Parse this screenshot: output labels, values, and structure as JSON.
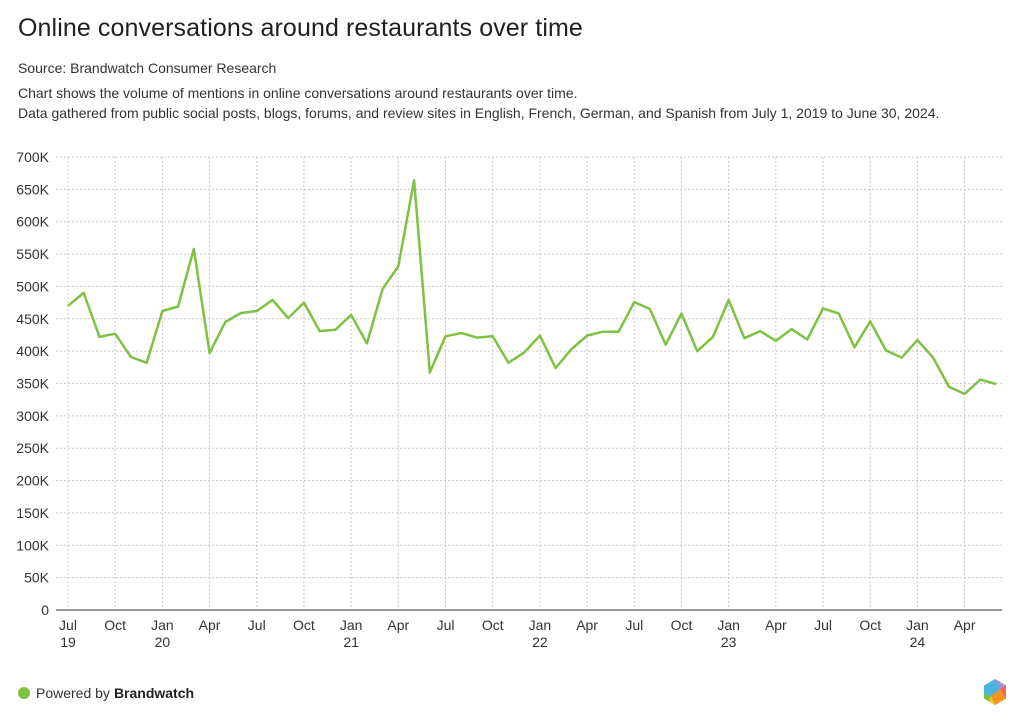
{
  "header": {
    "title": "Online conversations around restaurants over time",
    "source": "Source: Brandwatch Consumer Research",
    "description_lines": [
      "Chart shows the volume of mentions in online conversations around restaurants over time.",
      "Data gathered from public social posts, blogs, forums, and review sites in English, French, German, and Spanish from July 1, 2019 to June 30, 2024."
    ]
  },
  "footer": {
    "powered_by": "Powered by",
    "brand": "Brandwatch",
    "logo_icon": "brandwatch-hexagon-logo-icon"
  },
  "colors": {
    "line": "#7dc243",
    "grid": "#c8c8c8",
    "axis": "#999999",
    "text": "#333333"
  },
  "chart_data": {
    "type": "line",
    "title": "Online conversations around restaurants over time",
    "xlabel": "",
    "ylabel": "",
    "ylim": [
      0,
      700000
    ],
    "yticks": [
      0,
      50000,
      100000,
      150000,
      200000,
      250000,
      300000,
      350000,
      400000,
      450000,
      500000,
      550000,
      600000,
      650000,
      700000
    ],
    "ytick_labels": [
      "0",
      "50K",
      "100K",
      "150K",
      "200K",
      "250K",
      "300K",
      "350K",
      "400K",
      "450K",
      "500K",
      "550K",
      "600K",
      "650K",
      "700K"
    ],
    "xticks": [
      {
        "index": 0,
        "label": "Jul",
        "year": "19"
      },
      {
        "index": 3,
        "label": "Oct",
        "year": ""
      },
      {
        "index": 6,
        "label": "Jan",
        "year": "20"
      },
      {
        "index": 9,
        "label": "Apr",
        "year": ""
      },
      {
        "index": 12,
        "label": "Jul",
        "year": ""
      },
      {
        "index": 15,
        "label": "Oct",
        "year": ""
      },
      {
        "index": 18,
        "label": "Jan",
        "year": "21"
      },
      {
        "index": 21,
        "label": "Apr",
        "year": ""
      },
      {
        "index": 24,
        "label": "Jul",
        "year": ""
      },
      {
        "index": 27,
        "label": "Oct",
        "year": ""
      },
      {
        "index": 30,
        "label": "Jan",
        "year": "22"
      },
      {
        "index": 33,
        "label": "Apr",
        "year": ""
      },
      {
        "index": 36,
        "label": "Jul",
        "year": ""
      },
      {
        "index": 39,
        "label": "Oct",
        "year": ""
      },
      {
        "index": 42,
        "label": "Jan",
        "year": "23"
      },
      {
        "index": 45,
        "label": "Apr",
        "year": ""
      },
      {
        "index": 48,
        "label": "Jul",
        "year": ""
      },
      {
        "index": 51,
        "label": "Oct",
        "year": ""
      },
      {
        "index": 54,
        "label": "Jan",
        "year": "24"
      },
      {
        "index": 57,
        "label": "Apr",
        "year": ""
      }
    ],
    "grid": true,
    "legend": "none",
    "x": [
      "2019-07",
      "2019-08",
      "2019-09",
      "2019-10",
      "2019-11",
      "2019-12",
      "2020-01",
      "2020-02",
      "2020-03",
      "2020-04",
      "2020-05",
      "2020-06",
      "2020-07",
      "2020-08",
      "2020-09",
      "2020-10",
      "2020-11",
      "2020-12",
      "2021-01",
      "2021-02",
      "2021-03",
      "2021-04",
      "2021-05",
      "2021-06",
      "2021-07",
      "2021-08",
      "2021-09",
      "2021-10",
      "2021-11",
      "2021-12",
      "2022-01",
      "2022-02",
      "2022-03",
      "2022-04",
      "2022-05",
      "2022-06",
      "2022-07",
      "2022-08",
      "2022-09",
      "2022-10",
      "2022-11",
      "2022-12",
      "2023-01",
      "2023-02",
      "2023-03",
      "2023-04",
      "2023-05",
      "2023-06",
      "2023-07",
      "2023-08",
      "2023-09",
      "2023-10",
      "2023-11",
      "2023-12",
      "2024-01",
      "2024-02",
      "2024-03",
      "2024-04",
      "2024-05",
      "2024-06"
    ],
    "series": [
      {
        "name": "Mentions",
        "values": [
          470000,
          490000,
          422000,
          427000,
          391000,
          382000,
          462000,
          469000,
          558000,
          397000,
          445000,
          459000,
          462000,
          479000,
          451000,
          475000,
          431000,
          433000,
          456000,
          412000,
          496000,
          531000,
          664000,
          367000,
          423000,
          428000,
          421000,
          423000,
          382000,
          398000,
          424000,
          374000,
          403000,
          424000,
          430000,
          430000,
          476000,
          465000,
          410000,
          458000,
          400000,
          422000,
          479000,
          420000,
          431000,
          416000,
          434000,
          418000,
          466000,
          458000,
          406000,
          446000,
          401000,
          390000,
          417000,
          390000,
          345000,
          334000,
          356000,
          349000
        ]
      }
    ]
  }
}
